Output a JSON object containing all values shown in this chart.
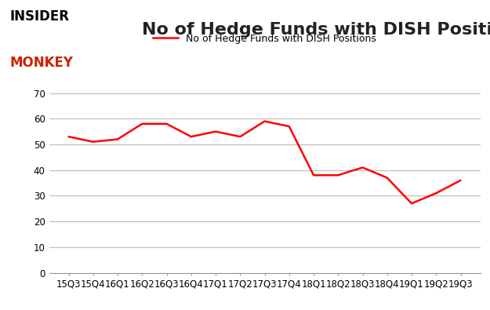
{
  "x_labels": [
    "15Q3",
    "15Q4",
    "16Q1",
    "16Q2",
    "16Q3",
    "16Q4",
    "17Q1",
    "17Q2",
    "17Q3",
    "17Q4",
    "18Q1",
    "18Q2",
    "18Q3",
    "18Q4",
    "19Q1",
    "19Q2",
    "19Q3"
  ],
  "y_values": [
    53,
    51,
    52,
    58,
    58,
    53,
    55,
    53,
    59,
    57,
    38,
    38,
    41,
    37,
    27,
    31,
    36
  ],
  "line_color": "#FF0000",
  "line_width": 1.8,
  "title": "No of Hedge Funds with DISH Positions",
  "title_fontsize": 16,
  "legend_label": "No of Hedge Funds with DISH Positions",
  "legend_fontsize": 9,
  "ylim": [
    0,
    70
  ],
  "yticks": [
    0,
    10,
    20,
    30,
    40,
    50,
    60,
    70
  ],
  "background_color": "#ffffff",
  "grid_color": "#bbbbbb",
  "tick_label_fontsize": 8.5,
  "logo_insider_color": "#000000",
  "logo_monkey_color": "#cc2200"
}
